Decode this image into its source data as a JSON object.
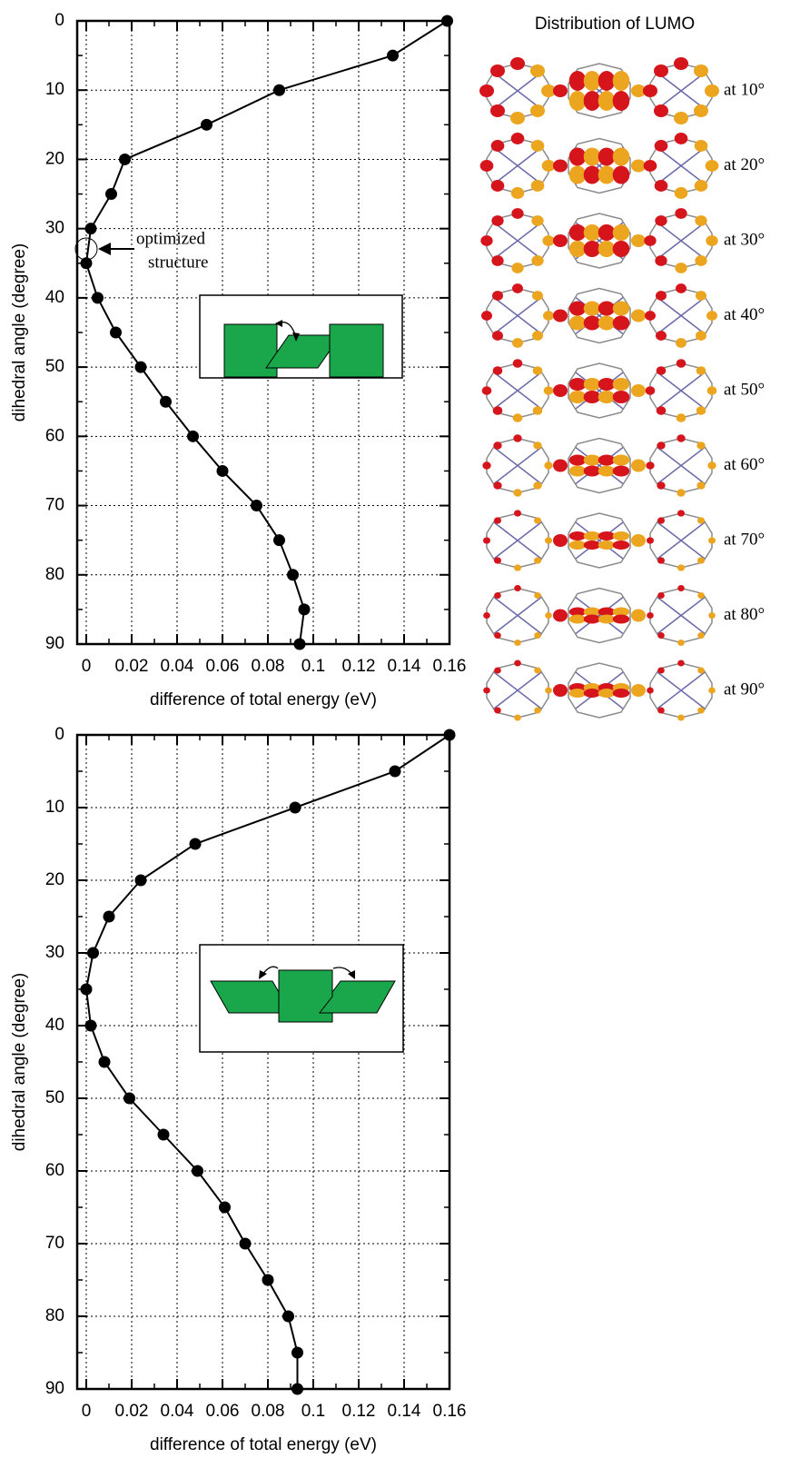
{
  "chart_data": [
    {
      "type": "line",
      "xlabel": "difference of total energy (eV)",
      "ylabel": "dihedral angle (degree)",
      "y": [
        0,
        5,
        10,
        15,
        20,
        25,
        30,
        35,
        40,
        45,
        50,
        55,
        60,
        65,
        70,
        75,
        80,
        85,
        90
      ],
      "values": [
        0.159,
        0.135,
        0.085,
        0.053,
        0.017,
        0.011,
        0.002,
        0.0,
        0.005,
        0.013,
        0.024,
        0.035,
        0.047,
        0.06,
        0.075,
        0.085,
        0.091,
        0.096,
        0.094
      ],
      "color": "#000000",
      "xlim": [
        -0.004,
        0.16
      ],
      "xticks": [
        0,
        0.02,
        0.04,
        0.06,
        0.08,
        0.1,
        0.12,
        0.14,
        0.16
      ],
      "ylim": [
        90,
        0
      ],
      "yticks": [
        0,
        10,
        20,
        30,
        40,
        50,
        60,
        70,
        80,
        90
      ],
      "grid": true,
      "annotation": [
        "optimized",
        "structure"
      ]
    },
    {
      "type": "line",
      "xlabel": "difference of total energy (eV)",
      "ylabel": "dihedral angle (degree)",
      "y": [
        0,
        5,
        10,
        15,
        20,
        25,
        30,
        35,
        40,
        45,
        50,
        55,
        60,
        65,
        70,
        75,
        80,
        85,
        90
      ],
      "values": [
        0.16,
        0.136,
        0.092,
        0.048,
        0.024,
        0.01,
        0.003,
        0.0,
        0.002,
        0.008,
        0.019,
        0.034,
        0.049,
        0.061,
        0.07,
        0.08,
        0.089,
        0.093,
        0.093
      ],
      "color": "#000000",
      "xlim": [
        -0.004,
        0.16
      ],
      "xticks": [
        0,
        0.02,
        0.04,
        0.06,
        0.08,
        0.1,
        0.12,
        0.14,
        0.16
      ],
      "ylim": [
        90,
        0
      ],
      "yticks": [
        0,
        10,
        20,
        30,
        40,
        50,
        60,
        70,
        80,
        90
      ],
      "grid": true
    }
  ],
  "lumo_panel": {
    "title": "Distribution of LUMO",
    "labels": [
      "at 10°",
      "at 20°",
      "at 30°",
      "at 40°",
      "at 50°",
      "at 60°",
      "at 70°",
      "at 80°",
      "at 90°"
    ]
  }
}
